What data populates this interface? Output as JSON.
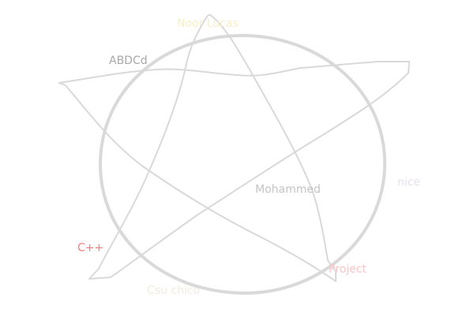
{
  "labels": {
    "top": "Noor Lucas",
    "abbdcd": "ABDCd",
    "center": "Mohammed",
    "nice": "nice",
    "cpp": "C++",
    "project": "Project",
    "csu": "Csu chico"
  },
  "colors": {
    "stroke": "#d9d9d9",
    "top_label": "#f5f0c8",
    "abbdcd_label": "#a8a8a8",
    "center_label": "#c4c4c4",
    "nice_label": "#e6e0ef",
    "cpp_label": "#f08080",
    "project_label": "#f8c6c6",
    "csu_label": "#f0ece0"
  },
  "icons": {
    "drawing": "pentagram-star-in-circle"
  }
}
